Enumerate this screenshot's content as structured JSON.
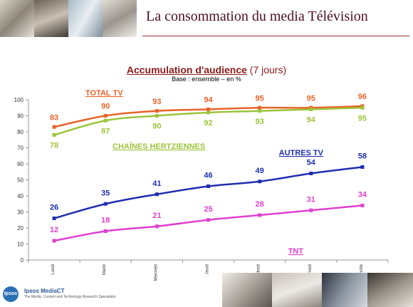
{
  "page": {
    "title": "La consommation du media Télévision"
  },
  "chart_title": {
    "main": "Accumulation d'audience",
    "suffix": " (7 jours)",
    "subtitle": "Base : ensemble – en %"
  },
  "footer": {
    "brand": "Ipsos MediaCT",
    "tagline": "The Media, Content and Technology Research Specialists",
    "logo_text": "Ipsos"
  },
  "colors": {
    "total_tv": "#e8642a",
    "hertziennes": "#9cc43a",
    "autres_tv": "#1f2fb0",
    "tnt": "#e040d0",
    "title": "#4a1020"
  },
  "chart_data": {
    "type": "line",
    "title": "Accumulation d'audience (7 jours)",
    "subtitle": "Base : ensemble – en %",
    "categories": [
      "Lundi",
      "Mardi",
      "Mercredi",
      "Jeudi",
      "Vendredi",
      "Samedi",
      "Dimanche"
    ],
    "ylim": [
      0,
      100
    ],
    "yticks": [
      0,
      10,
      20,
      30,
      40,
      50,
      60,
      70,
      80,
      90,
      100
    ],
    "grid": false,
    "series": [
      {
        "name": "TOTAL TV",
        "values": [
          83,
          90,
          93,
          94,
          95,
          95,
          96
        ],
        "color": "#e8642a"
      },
      {
        "name": "CHAÎNES HERTZIENNES",
        "values": [
          78,
          87,
          90,
          92,
          93,
          94,
          95
        ],
        "color": "#9cc43a"
      },
      {
        "name": "AUTRES TV",
        "values": [
          26,
          35,
          41,
          46,
          49,
          54,
          58
        ],
        "color": "#1f2fb0"
      },
      {
        "name": "TNT",
        "values": [
          12,
          18,
          21,
          25,
          28,
          31,
          34
        ],
        "color": "#e040d0"
      }
    ]
  }
}
